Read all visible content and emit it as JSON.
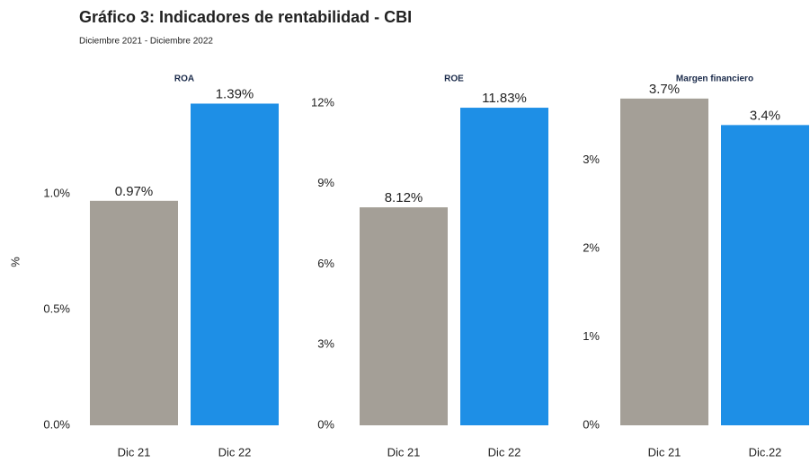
{
  "title": "Gráfico 3:  Indicadores de rentabilidad - CBI",
  "subtitle": "Diciembre 2021  -  Diciembre 2022",
  "chart_data": [
    {
      "type": "bar",
      "title": "ROA",
      "ylabel": "%",
      "categories": [
        "Dic 21",
        "Dic 22"
      ],
      "values": [
        0.97,
        1.39
      ],
      "value_labels": [
        "0.97%",
        "1.39%"
      ],
      "colors": [
        "#a49f97",
        "#1e8fe6"
      ],
      "ylim": [
        0,
        1.45
      ],
      "yticks": [
        {
          "value": 0,
          "label": "0.0%"
        },
        {
          "value": 0.5,
          "label": "0.5%"
        },
        {
          "value": 1.0,
          "label": "1.0%"
        }
      ]
    },
    {
      "type": "bar",
      "title": "ROE",
      "categories": [
        "Dic 21",
        "Dic 22"
      ],
      "values": [
        8.12,
        11.83
      ],
      "value_labels": [
        "8.12%",
        "11.83%"
      ],
      "colors": [
        "#a49f97",
        "#1e8fe6"
      ],
      "ylim": [
        0,
        12.5
      ],
      "yticks": [
        {
          "value": 0,
          "label": "0%"
        },
        {
          "value": 3,
          "label": "3%"
        },
        {
          "value": 6,
          "label": "6%"
        },
        {
          "value": 9,
          "label": "9%"
        },
        {
          "value": 12,
          "label": "12%"
        }
      ]
    },
    {
      "type": "bar",
      "title": "Margen financiero",
      "categories": [
        "Dic 21",
        "Dic.22"
      ],
      "values": [
        3.7,
        3.4
      ],
      "value_labels": [
        "3.7%",
        "3.4%"
      ],
      "colors": [
        "#a49f97",
        "#1e8fe6"
      ],
      "ylim": [
        0,
        3.8
      ],
      "yticks": [
        {
          "value": 0,
          "label": "0%"
        },
        {
          "value": 1,
          "label": "1%"
        },
        {
          "value": 2,
          "label": "2%"
        },
        {
          "value": 3,
          "label": "3%"
        }
      ]
    }
  ]
}
